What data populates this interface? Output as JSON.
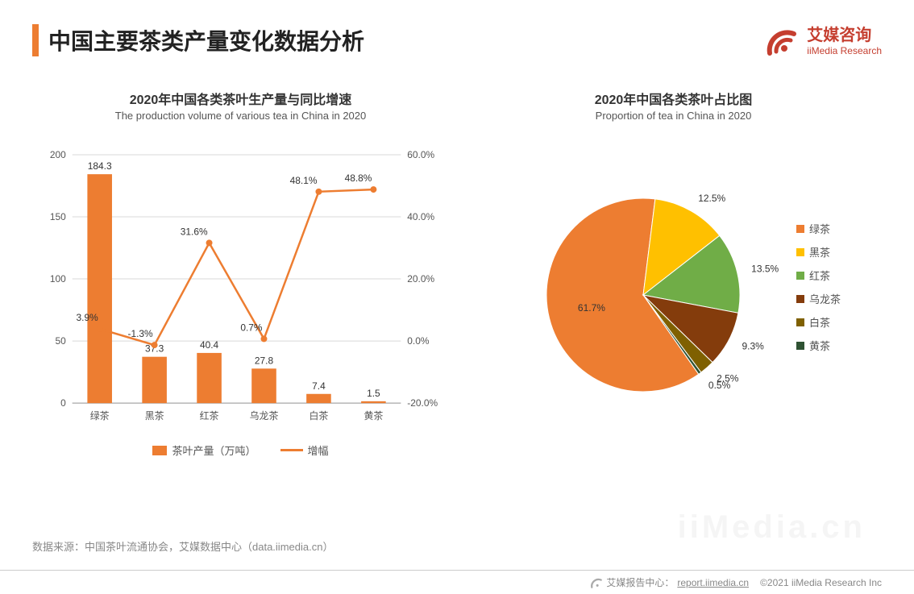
{
  "header": {
    "main_title": "中国主要茶类产量变化数据分析",
    "accent_color": "#ed7d31",
    "logo_cn": "艾媒咨询",
    "logo_en": "iiMedia Research",
    "logo_color": "#c53e2f"
  },
  "combo_chart": {
    "title_cn": "2020年中国各类茶叶生产量与同比增速",
    "title_en": "The production volume of various tea in China in 2020",
    "type": "bar+line",
    "categories": [
      "绿茶",
      "黑茶",
      "红茶",
      "乌龙茶",
      "白茶",
      "黄茶"
    ],
    "bar_series": {
      "name": "茶叶产量（万吨）",
      "values": [
        184.3,
        37.3,
        40.4,
        27.8,
        7.4,
        1.5
      ],
      "labels": [
        "184.3",
        "37.3",
        "40.4",
        "27.8",
        "7.4",
        "1.5"
      ],
      "color": "#ed7d31",
      "bar_width": 0.45
    },
    "line_series": {
      "name": "增幅",
      "values": [
        3.9,
        -1.3,
        31.6,
        0.7,
        48.1,
        48.8
      ],
      "labels": [
        "3.9%",
        "-1.3%",
        "31.6%",
        "0.7%",
        "48.1%",
        "48.8%"
      ],
      "color": "#ed7d31",
      "line_width": 2.5,
      "marker": "circle"
    },
    "y_left": {
      "lim": [
        0,
        200
      ],
      "ticks": [
        0,
        50,
        100,
        150,
        200
      ]
    },
    "y_right": {
      "lim": [
        -20,
        60
      ],
      "ticks": [
        -20,
        0,
        20,
        40,
        60
      ],
      "tick_labels": [
        "-20.0%",
        "0.0%",
        "20.0%",
        "40.0%",
        "60.0%"
      ]
    },
    "grid_color": "#d9d9d9",
    "axis_font_size": 12,
    "label_font_size": 12,
    "background": "#ffffff"
  },
  "pie_chart": {
    "title_cn": "2020年中国各类茶叶占比图",
    "title_en": "Proportion of tea in China in 2020",
    "type": "pie",
    "slices": [
      {
        "name": "绿茶",
        "value": 61.7,
        "label": "61.7%",
        "color": "#ed7d31"
      },
      {
        "name": "黑茶",
        "value": 12.5,
        "label": "12.5%",
        "color": "#ffc000"
      },
      {
        "name": "红茶",
        "value": 13.5,
        "label": "13.5%",
        "color": "#70ad47"
      },
      {
        "name": "乌龙茶",
        "value": 9.3,
        "label": "9.3%",
        "color": "#843c0c"
      },
      {
        "name": "白茶",
        "value": 2.5,
        "label": "2.5%",
        "color": "#7f6000"
      },
      {
        "name": "黄茶",
        "value": 0.5,
        "label": "0.5%",
        "color": "#2f5233"
      }
    ],
    "start_angle_deg": 55,
    "label_font_size": 12,
    "radius": 120,
    "background": "#ffffff"
  },
  "footer": {
    "source": "数据来源：中国茶叶流通协会，艾媒数据中心（data.iimedia.cn）",
    "report_label": "艾媒报告中心：",
    "report_url": "report.iimedia.cn",
    "copyright": "©2021  iiMedia Research  Inc",
    "watermark": "iiMedia.cn"
  },
  "colors": {
    "text_primary": "#333333",
    "text_secondary": "#888888",
    "grid": "#d9d9d9"
  }
}
